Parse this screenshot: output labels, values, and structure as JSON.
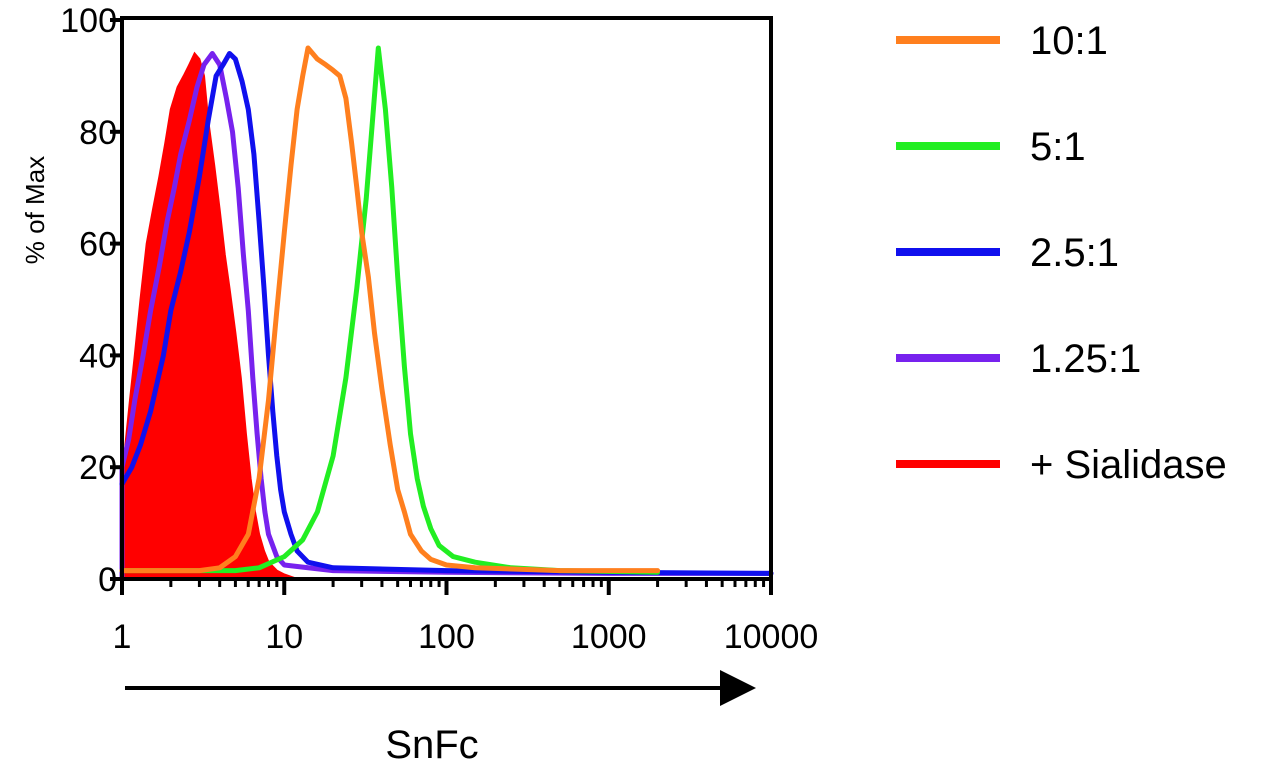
{
  "chart_data": {
    "type": "line",
    "title": "",
    "xlabel": "SnFc",
    "ylabel": "% of Max",
    "x_scale": "log",
    "xlim": [
      1,
      10000
    ],
    "ylim": [
      0,
      100
    ],
    "x_ticks": [
      1,
      10,
      100,
      1000,
      10000
    ],
    "x_tick_labels": [
      "1",
      "10",
      "100",
      "1000",
      "10000"
    ],
    "y_ticks": [
      0,
      20,
      40,
      60,
      80,
      100
    ],
    "y_tick_labels": [
      "0",
      "20",
      "40",
      "60",
      "80",
      "100"
    ],
    "grid": false,
    "legend_position": "right",
    "legend": [
      "10:1",
      "5:1",
      "2.5:1",
      "1.25:1",
      "+ Sialidase"
    ],
    "series": [
      {
        "name": "10:1",
        "color": "#ff7f1e",
        "fill": false,
        "points": [
          [
            1,
            1.5
          ],
          [
            3,
            1.5
          ],
          [
            4,
            2
          ],
          [
            5,
            4
          ],
          [
            6,
            8
          ],
          [
            7,
            18
          ],
          [
            8,
            32
          ],
          [
            9,
            48
          ],
          [
            10,
            62
          ],
          [
            11,
            74
          ],
          [
            12,
            84
          ],
          [
            13,
            90
          ],
          [
            14,
            95
          ],
          [
            16,
            93
          ],
          [
            18,
            92
          ],
          [
            20,
            91
          ],
          [
            22,
            90
          ],
          [
            24,
            86
          ],
          [
            26,
            78
          ],
          [
            28,
            70
          ],
          [
            30,
            62
          ],
          [
            33,
            54
          ],
          [
            36,
            44
          ],
          [
            40,
            34
          ],
          [
            45,
            24
          ],
          [
            50,
            16
          ],
          [
            55,
            12
          ],
          [
            60,
            8
          ],
          [
            70,
            5
          ],
          [
            80,
            3.5
          ],
          [
            100,
            2.5
          ],
          [
            150,
            2
          ],
          [
            500,
            1.5
          ],
          [
            2000,
            1.5
          ]
        ]
      },
      {
        "name": "5:1",
        "color": "#22ee22",
        "fill": false,
        "points": [
          [
            1,
            1.5
          ],
          [
            5,
            1.5
          ],
          [
            7,
            2
          ],
          [
            10,
            4
          ],
          [
            13,
            7
          ],
          [
            16,
            12
          ],
          [
            20,
            22
          ],
          [
            24,
            36
          ],
          [
            28,
            52
          ],
          [
            32,
            68
          ],
          [
            35,
            82
          ],
          [
            38,
            95
          ],
          [
            42,
            84
          ],
          [
            46,
            70
          ],
          [
            50,
            54
          ],
          [
            55,
            38
          ],
          [
            60,
            26
          ],
          [
            66,
            18
          ],
          [
            72,
            13
          ],
          [
            80,
            9
          ],
          [
            90,
            6
          ],
          [
            110,
            4
          ],
          [
            150,
            3
          ],
          [
            250,
            2
          ],
          [
            500,
            1.5
          ],
          [
            2000,
            1.2
          ]
        ]
      },
      {
        "name": "2.5:1",
        "color": "#1010ee",
        "fill": false,
        "points": [
          [
            1,
            17
          ],
          [
            1.15,
            20
          ],
          [
            1.3,
            24
          ],
          [
            1.5,
            30
          ],
          [
            1.8,
            40
          ],
          [
            2,
            48
          ],
          [
            2.3,
            55
          ],
          [
            2.6,
            62
          ],
          [
            3,
            72
          ],
          [
            3.4,
            82
          ],
          [
            3.8,
            90
          ],
          [
            4.2,
            92
          ],
          [
            4.6,
            94
          ],
          [
            5,
            93
          ],
          [
            5.5,
            89
          ],
          [
            6,
            84
          ],
          [
            6.5,
            76
          ],
          [
            7,
            64
          ],
          [
            7.5,
            52
          ],
          [
            8,
            40
          ],
          [
            8.5,
            30
          ],
          [
            9,
            22
          ],
          [
            9.5,
            16
          ],
          [
            10,
            12
          ],
          [
            11,
            8
          ],
          [
            12,
            5
          ],
          [
            14,
            3
          ],
          [
            20,
            2
          ],
          [
            100,
            1.5
          ],
          [
            1000,
            1.2
          ],
          [
            10000,
            1
          ]
        ]
      },
      {
        "name": "1.25:1",
        "color": "#7722ee",
        "fill": false,
        "points": [
          [
            1,
            0
          ],
          [
            1,
            20
          ],
          [
            1.1,
            25
          ],
          [
            1.2,
            32
          ],
          [
            1.35,
            40
          ],
          [
            1.5,
            48
          ],
          [
            1.7,
            56
          ],
          [
            1.9,
            64
          ],
          [
            2.1,
            70
          ],
          [
            2.3,
            76
          ],
          [
            2.6,
            82
          ],
          [
            2.9,
            88
          ],
          [
            3.2,
            92
          ],
          [
            3.6,
            94
          ],
          [
            4,
            92
          ],
          [
            4.4,
            86
          ],
          [
            4.8,
            80
          ],
          [
            5.2,
            70
          ],
          [
            5.6,
            58
          ],
          [
            6,
            48
          ],
          [
            6.4,
            36
          ],
          [
            6.8,
            26
          ],
          [
            7.2,
            18
          ],
          [
            7.6,
            12
          ],
          [
            8,
            8
          ],
          [
            9,
            4
          ],
          [
            10,
            2.5
          ],
          [
            20,
            1.5
          ],
          [
            100,
            1.2
          ],
          [
            1000,
            1
          ],
          [
            10000,
            1
          ]
        ]
      },
      {
        "name": "+ Sialidase",
        "color": "#ff0000",
        "fill": true,
        "points": [
          [
            1,
            0
          ],
          [
            1,
            1
          ],
          [
            1.05,
            24
          ],
          [
            1.12,
            32
          ],
          [
            1.2,
            40
          ],
          [
            1.3,
            50
          ],
          [
            1.42,
            60
          ],
          [
            1.55,
            66
          ],
          [
            1.7,
            72
          ],
          [
            1.85,
            78
          ],
          [
            2,
            84
          ],
          [
            2.2,
            88
          ],
          [
            2.4,
            90
          ],
          [
            2.6,
            92
          ],
          [
            2.8,
            94
          ],
          [
            3,
            93
          ],
          [
            3.2,
            90
          ],
          [
            3.4,
            82
          ],
          [
            3.7,
            74
          ],
          [
            4,
            66
          ],
          [
            4.3,
            58
          ],
          [
            4.6,
            52
          ],
          [
            5,
            44
          ],
          [
            5.4,
            36
          ],
          [
            5.8,
            26
          ],
          [
            6.2,
            18
          ],
          [
            6.6,
            12
          ],
          [
            7,
            8
          ],
          [
            7.5,
            5
          ],
          [
            8,
            3
          ],
          [
            9,
            1.5
          ],
          [
            10,
            0.8
          ],
          [
            12,
            0
          ]
        ]
      }
    ]
  }
}
